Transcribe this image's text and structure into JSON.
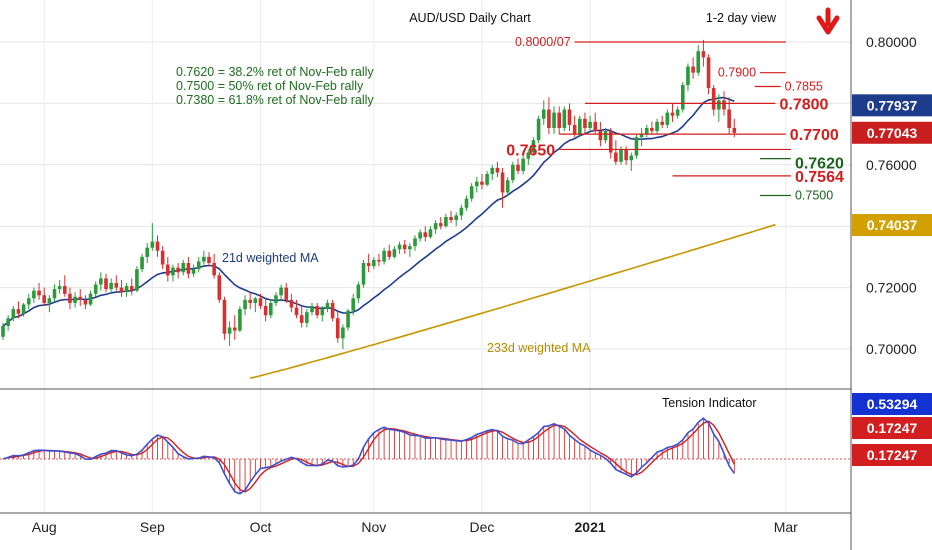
{
  "chart_data": {
    "type": "candlestick",
    "title": "AUD/USD Daily Chart",
    "view_label": "1-2 day view",
    "view_direction": "down",
    "main_panel": {
      "ylim": [
        0.694,
        0.806
      ],
      "y_ticks": [
        "0.80000",
        "0.78000",
        "0.76000",
        "0.74000",
        "0.72000",
        "0.70000"
      ],
      "grid": true,
      "notes": [
        "0.7620 = 38.2% ret of Nov-Feb rally",
        "0.7500 = 50% ret of Nov-Feb rally",
        "0.7380 = 61.8% ret of Nov-Feb rally"
      ],
      "ma21_label": "21d weighted MA",
      "ma233_label": "233d weighted MA",
      "badges": [
        {
          "value": 0.77937,
          "text": "0.77937",
          "color": "#1e3c8c"
        },
        {
          "value": 0.77043,
          "text": "0.77043",
          "color": "#c81e1e"
        },
        {
          "value": 0.74037,
          "text": "0.74037",
          "color": "#d2a000"
        }
      ],
      "levels": [
        {
          "label": "0.8000/07",
          "value": 0.8,
          "x_from": 111,
          "x_to": 152,
          "color": "#d21e1e",
          "size": "small",
          "label_side": "left"
        },
        {
          "label": "0.7900",
          "value": 0.79,
          "x_from": 147,
          "x_to": 152,
          "color": "#d21e1e",
          "size": "small",
          "label_side": "left"
        },
        {
          "label": "0.7855",
          "value": 0.7855,
          "x_from": 146,
          "x_to": 151,
          "color": "#d21e1e",
          "size": "small",
          "label_side": "right"
        },
        {
          "label": "0.7800",
          "value": 0.78,
          "x_from": 113,
          "x_to": 150,
          "color": "#d21e1e",
          "size": "large",
          "label_side": "right"
        },
        {
          "label": "0.7700",
          "value": 0.77,
          "x_from": 108,
          "x_to": 152,
          "color": "#d21e1e",
          "size": "large",
          "label_side": "right"
        },
        {
          "label": "0.7650",
          "value": 0.765,
          "x_from": 108,
          "x_to": 153,
          "color": "#d21e1e",
          "size": "large",
          "label_side": "left"
        },
        {
          "label": "0.7620",
          "value": 0.762,
          "x_from": 147,
          "x_to": 153,
          "color": "#1e641e",
          "size": "large",
          "label_side": "right"
        },
        {
          "label": "0.7564",
          "value": 0.7564,
          "x_from": 130,
          "x_to": 153,
          "color": "#d21e1e",
          "size": "large",
          "label_side": "right"
        },
        {
          "label": "0.7500",
          "value": 0.75,
          "x_from": 147,
          "x_to": 153,
          "color": "#1e641e",
          "size": "small",
          "label_side": "right"
        }
      ],
      "candles_note": "daily OHLC, approx. Jul 2020 - Mar 2021, index = trading day",
      "candles": [
        [
          0,
          0.704,
          0.7085,
          0.703,
          0.7075
        ],
        [
          1,
          0.7075,
          0.711,
          0.706,
          0.71
        ],
        [
          2,
          0.71,
          0.714,
          0.709,
          0.713
        ],
        [
          3,
          0.713,
          0.7155,
          0.71,
          0.7115
        ],
        [
          4,
          0.7115,
          0.715,
          0.7105,
          0.7145
        ],
        [
          5,
          0.7145,
          0.718,
          0.713,
          0.7165
        ],
        [
          6,
          0.7165,
          0.72,
          0.715,
          0.719
        ],
        [
          7,
          0.719,
          0.7215,
          0.716,
          0.7175
        ],
        [
          8,
          0.7175,
          0.72,
          0.714,
          0.715
        ],
        [
          9,
          0.715,
          0.7175,
          0.712,
          0.7165
        ],
        [
          10,
          0.7165,
          0.721,
          0.7155,
          0.7195
        ],
        [
          11,
          0.7195,
          0.7225,
          0.718,
          0.7205
        ],
        [
          12,
          0.7205,
          0.724,
          0.717,
          0.718
        ],
        [
          13,
          0.718,
          0.72,
          0.713,
          0.715
        ],
        [
          14,
          0.715,
          0.7185,
          0.7135,
          0.717
        ],
        [
          15,
          0.717,
          0.7195,
          0.714,
          0.716
        ],
        [
          16,
          0.716,
          0.7175,
          0.713,
          0.7145
        ],
        [
          17,
          0.7145,
          0.719,
          0.714,
          0.718
        ],
        [
          18,
          0.718,
          0.722,
          0.717,
          0.721
        ],
        [
          19,
          0.721,
          0.725,
          0.719,
          0.723
        ],
        [
          20,
          0.723,
          0.7245,
          0.7185,
          0.7195
        ],
        [
          21,
          0.7195,
          0.723,
          0.718,
          0.7215
        ],
        [
          22,
          0.7215,
          0.724,
          0.719,
          0.72
        ],
        [
          23,
          0.72,
          0.7225,
          0.717,
          0.7185
        ],
        [
          24,
          0.7185,
          0.7215,
          0.717,
          0.7205
        ],
        [
          25,
          0.7205,
          0.723,
          0.7175,
          0.719
        ],
        [
          26,
          0.719,
          0.727,
          0.7185,
          0.726
        ],
        [
          27,
          0.726,
          0.731,
          0.725,
          0.73
        ],
        [
          28,
          0.73,
          0.7345,
          0.728,
          0.733
        ],
        [
          29,
          0.733,
          0.741,
          0.732,
          0.735
        ],
        [
          30,
          0.735,
          0.737,
          0.73,
          0.732
        ],
        [
          31,
          0.732,
          0.7335,
          0.726,
          0.7275
        ],
        [
          32,
          0.7275,
          0.73,
          0.722,
          0.724
        ],
        [
          33,
          0.724,
          0.7275,
          0.722,
          0.7265
        ],
        [
          34,
          0.7265,
          0.728,
          0.723,
          0.725
        ],
        [
          35,
          0.725,
          0.729,
          0.724,
          0.728
        ],
        [
          36,
          0.728,
          0.73,
          0.723,
          0.7245
        ],
        [
          37,
          0.7245,
          0.7275,
          0.7235,
          0.726
        ],
        [
          38,
          0.726,
          0.73,
          0.725,
          0.7285
        ],
        [
          39,
          0.7285,
          0.732,
          0.7275,
          0.73
        ],
        [
          40,
          0.73,
          0.7315,
          0.727,
          0.728
        ],
        [
          41,
          0.728,
          0.731,
          0.723,
          0.724
        ],
        [
          42,
          0.724,
          0.725,
          0.715,
          0.716
        ],
        [
          43,
          0.716,
          0.717,
          0.703,
          0.705
        ],
        [
          44,
          0.705,
          0.709,
          0.701,
          0.707
        ],
        [
          45,
          0.707,
          0.711,
          0.703,
          0.706
        ],
        [
          46,
          0.706,
          0.714,
          0.7055,
          0.713
        ],
        [
          47,
          0.713,
          0.7175,
          0.711,
          0.716
        ],
        [
          48,
          0.716,
          0.7185,
          0.713,
          0.715
        ],
        [
          49,
          0.715,
          0.717,
          0.712,
          0.7165
        ],
        [
          50,
          0.7165,
          0.718,
          0.713,
          0.714
        ],
        [
          51,
          0.714,
          0.716,
          0.709,
          0.711
        ],
        [
          52,
          0.711,
          0.716,
          0.71,
          0.715
        ],
        [
          53,
          0.715,
          0.7185,
          0.714,
          0.7175
        ],
        [
          54,
          0.7175,
          0.721,
          0.716,
          0.72
        ],
        [
          55,
          0.72,
          0.7215,
          0.715,
          0.716
        ],
        [
          56,
          0.716,
          0.718,
          0.712,
          0.7135
        ],
        [
          57,
          0.7135,
          0.716,
          0.71,
          0.711
        ],
        [
          58,
          0.711,
          0.714,
          0.707,
          0.7085
        ],
        [
          59,
          0.7085,
          0.713,
          0.707,
          0.712
        ],
        [
          60,
          0.712,
          0.715,
          0.711,
          0.714
        ],
        [
          61,
          0.714,
          0.715,
          0.71,
          0.711
        ],
        [
          62,
          0.711,
          0.714,
          0.709,
          0.713
        ],
        [
          63,
          0.713,
          0.716,
          0.712,
          0.715
        ],
        [
          64,
          0.715,
          0.716,
          0.709,
          0.71
        ],
        [
          65,
          0.71,
          0.712,
          0.702,
          0.7035
        ],
        [
          66,
          0.7035,
          0.708,
          0.7,
          0.707
        ],
        [
          67,
          0.707,
          0.713,
          0.706,
          0.7125
        ],
        [
          68,
          0.7125,
          0.718,
          0.711,
          0.7165
        ],
        [
          69,
          0.7165,
          0.722,
          0.715,
          0.721
        ],
        [
          70,
          0.721,
          0.729,
          0.72,
          0.728
        ],
        [
          71,
          0.728,
          0.731,
          0.725,
          0.727
        ],
        [
          72,
          0.727,
          0.73,
          0.726,
          0.729
        ],
        [
          73,
          0.729,
          0.731,
          0.727,
          0.7285
        ],
        [
          74,
          0.7285,
          0.733,
          0.7275,
          0.732
        ],
        [
          75,
          0.732,
          0.734,
          0.729,
          0.73
        ],
        [
          76,
          0.73,
          0.7335,
          0.7295,
          0.7325
        ],
        [
          77,
          0.7325,
          0.735,
          0.731,
          0.734
        ],
        [
          78,
          0.734,
          0.7355,
          0.731,
          0.7325
        ],
        [
          79,
          0.7325,
          0.7345,
          0.73,
          0.7335
        ],
        [
          80,
          0.7335,
          0.737,
          0.732,
          0.736
        ],
        [
          81,
          0.736,
          0.739,
          0.735,
          0.738
        ],
        [
          82,
          0.738,
          0.74,
          0.735,
          0.7365
        ],
        [
          83,
          0.7365,
          0.74,
          0.736,
          0.739
        ],
        [
          84,
          0.739,
          0.742,
          0.7375,
          0.741
        ],
        [
          85,
          0.741,
          0.743,
          0.739,
          0.74
        ],
        [
          86,
          0.74,
          0.744,
          0.7395,
          0.743
        ],
        [
          87,
          0.743,
          0.745,
          0.741,
          0.742
        ],
        [
          88,
          0.742,
          0.7445,
          0.74,
          0.7435
        ],
        [
          89,
          0.7435,
          0.747,
          0.742,
          0.746
        ],
        [
          90,
          0.746,
          0.75,
          0.745,
          0.749
        ],
        [
          91,
          0.749,
          0.754,
          0.748,
          0.753
        ],
        [
          92,
          0.753,
          0.756,
          0.751,
          0.7545
        ],
        [
          93,
          0.7545,
          0.757,
          0.752,
          0.7535
        ],
        [
          94,
          0.7535,
          0.758,
          0.753,
          0.757
        ],
        [
          95,
          0.757,
          0.76,
          0.755,
          0.759
        ],
        [
          96,
          0.759,
          0.761,
          0.756,
          0.7575
        ],
        [
          97,
          0.7575,
          0.759,
          0.746,
          0.751
        ],
        [
          98,
          0.751,
          0.756,
          0.75,
          0.755
        ],
        [
          99,
          0.755,
          0.761,
          0.754,
          0.76
        ],
        [
          100,
          0.76,
          0.762,
          0.757,
          0.758
        ],
        [
          101,
          0.758,
          0.763,
          0.757,
          0.762
        ],
        [
          102,
          0.762,
          0.765,
          0.76,
          0.764
        ],
        [
          103,
          0.764,
          0.769,
          0.763,
          0.768
        ],
        [
          104,
          0.768,
          0.776,
          0.767,
          0.775
        ],
        [
          105,
          0.775,
          0.781,
          0.773,
          0.778
        ],
        [
          106,
          0.778,
          0.782,
          0.77,
          0.772
        ],
        [
          107,
          0.772,
          0.779,
          0.77,
          0.777
        ],
        [
          108,
          0.777,
          0.779,
          0.77,
          0.772
        ],
        [
          109,
          0.772,
          0.779,
          0.771,
          0.778
        ],
        [
          110,
          0.778,
          0.78,
          0.771,
          0.773
        ],
        [
          111,
          0.773,
          0.776,
          0.769,
          0.77
        ],
        [
          112,
          0.77,
          0.776,
          0.769,
          0.775
        ],
        [
          113,
          0.775,
          0.777,
          0.77,
          0.772
        ],
        [
          114,
          0.772,
          0.776,
          0.771,
          0.774
        ],
        [
          115,
          0.774,
          0.777,
          0.77,
          0.771
        ],
        [
          116,
          0.771,
          0.774,
          0.766,
          0.768
        ],
        [
          117,
          0.768,
          0.772,
          0.767,
          0.771
        ],
        [
          118,
          0.771,
          0.772,
          0.762,
          0.764
        ],
        [
          119,
          0.764,
          0.768,
          0.76,
          0.761
        ],
        [
          120,
          0.761,
          0.766,
          0.76,
          0.765
        ],
        [
          121,
          0.765,
          0.766,
          0.76,
          0.7615
        ],
        [
          122,
          0.7615,
          0.764,
          0.758,
          0.763
        ],
        [
          123,
          0.763,
          0.77,
          0.762,
          0.769
        ],
        [
          124,
          0.769,
          0.772,
          0.766,
          0.77
        ],
        [
          125,
          0.77,
          0.773,
          0.769,
          0.772
        ],
        [
          126,
          0.772,
          0.774,
          0.77,
          0.771
        ],
        [
          127,
          0.771,
          0.775,
          0.77,
          0.774
        ],
        [
          128,
          0.774,
          0.776,
          0.772,
          0.773
        ],
        [
          129,
          0.773,
          0.778,
          0.772,
          0.777
        ],
        [
          130,
          0.777,
          0.78,
          0.774,
          0.776
        ],
        [
          131,
          0.776,
          0.779,
          0.775,
          0.778
        ],
        [
          132,
          0.778,
          0.787,
          0.777,
          0.786
        ],
        [
          133,
          0.786,
          0.793,
          0.784,
          0.792
        ],
        [
          134,
          0.792,
          0.795,
          0.788,
          0.79
        ],
        [
          135,
          0.79,
          0.799,
          0.789,
          0.797
        ],
        [
          136,
          0.797,
          0.8007,
          0.792,
          0.795
        ],
        [
          137,
          0.795,
          0.796,
          0.783,
          0.785
        ],
        [
          138,
          0.785,
          0.786,
          0.776,
          0.778
        ],
        [
          139,
          0.778,
          0.783,
          0.774,
          0.781
        ],
        [
          140,
          0.781,
          0.784,
          0.776,
          0.778
        ],
        [
          141,
          0.778,
          0.782,
          0.77,
          0.772
        ],
        [
          142,
          0.772,
          0.775,
          0.769,
          0.7704
        ]
      ]
    },
    "x_axis": {
      "labels": [
        {
          "text": "Aug",
          "day": 8,
          "bold": false
        },
        {
          "text": "Sep",
          "day": 29,
          "bold": false
        },
        {
          "text": "Oct",
          "day": 50,
          "bold": false
        },
        {
          "text": "Nov",
          "day": 72,
          "bold": false
        },
        {
          "text": "Dec",
          "day": 93,
          "bold": false
        },
        {
          "text": "2021",
          "day": 114,
          "bold": true
        },
        {
          "text": "Mar",
          "day": 152,
          "bold": false
        }
      ]
    },
    "lower_panel": {
      "title": "Tension Indicator",
      "badges": [
        {
          "text": "0.53294",
          "color": "#1432d2"
        },
        {
          "text": "0.17247",
          "color": "#d21e1e"
        },
        {
          "text": "0.17247",
          "color": "#d21e1e"
        }
      ]
    }
  }
}
